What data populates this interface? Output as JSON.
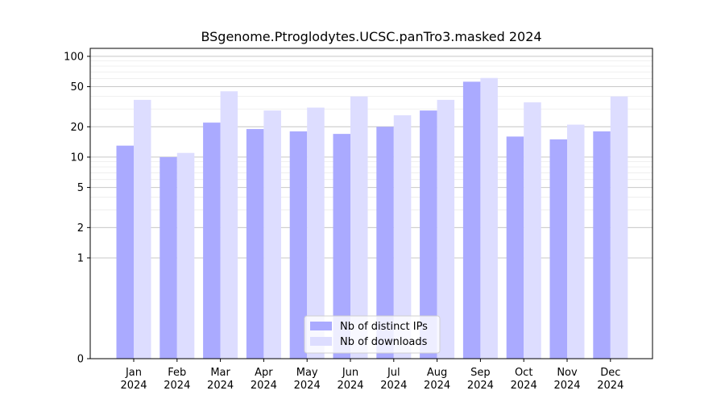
{
  "chart_data": {
    "type": "bar",
    "title": "BSgenome.Ptroglodytes.UCSC.panTro3.masked 2024",
    "xlabel": "",
    "ylabel": "",
    "yscale": "symlog",
    "yticks": [
      0,
      1,
      2,
      5,
      10,
      20,
      50,
      100
    ],
    "ylim": [
      0,
      120
    ],
    "grid": true,
    "legend_position": "bottom-center",
    "categories": [
      "Jan\n2024",
      "Feb\n2024",
      "Mar\n2024",
      "Apr\n2024",
      "May\n2024",
      "Jun\n2024",
      "Jul\n2024",
      "Aug\n2024",
      "Sep\n2024",
      "Oct\n2024",
      "Nov\n2024",
      "Dec\n2024"
    ],
    "series": [
      {
        "name": "Nb of distinct IPs",
        "color": "#aaaaff",
        "values": [
          13,
          10,
          22,
          19,
          18,
          17,
          20,
          29,
          56,
          16,
          15,
          18
        ]
      },
      {
        "name": "Nb of downloads",
        "color": "#ddddff",
        "values": [
          37,
          11,
          45,
          29,
          31,
          40,
          26,
          37,
          61,
          35,
          21,
          40
        ]
      }
    ]
  }
}
